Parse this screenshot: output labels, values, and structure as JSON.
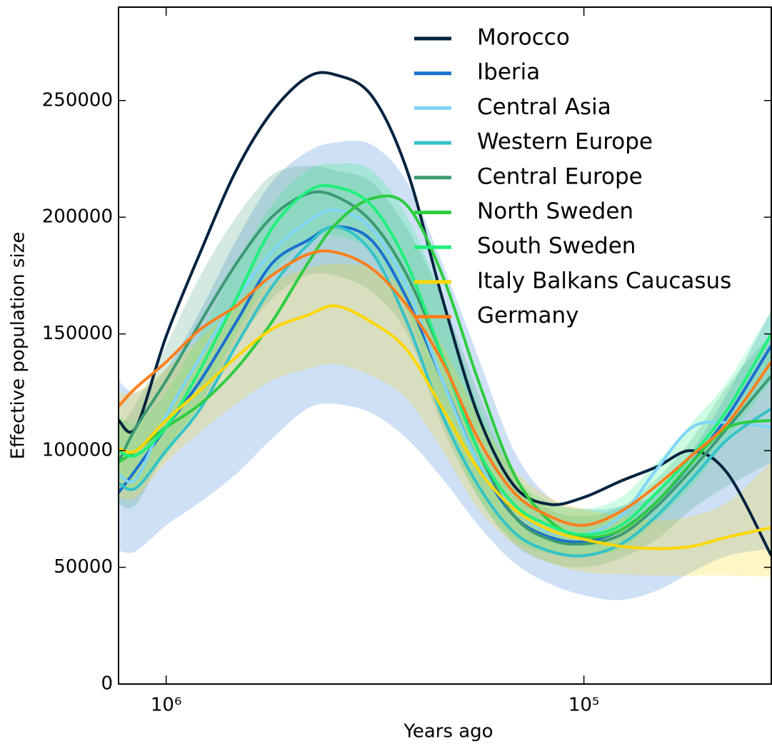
{
  "chart_data": {
    "type": "line",
    "x_label": "Years ago",
    "y_label": "Effective population size",
    "x_scale": "log",
    "legend": "upper right",
    "xlim": [
      1300000,
      35600
    ],
    "xticks": [
      {
        "value": 1000000,
        "label": "10⁶"
      },
      {
        "value": 100000,
        "label": "10⁵"
      }
    ],
    "ylim": [
      0,
      290000
    ],
    "yticks": [
      0,
      50000,
      100000,
      150000,
      200000,
      250000
    ],
    "x": [
      1300000,
      1180000,
      1000000,
      828000,
      680000,
      559000,
      459000,
      393000,
      322000,
      265000,
      218000,
      179000,
      147000,
      121000,
      100000,
      81500,
      67000,
      55100,
      45200,
      35600
    ],
    "series": [
      {
        "name": "Morocco",
        "color": "#03223f",
        "values": [
          113000,
          110000,
          149000,
          185000,
          220000,
          245000,
          260000,
          261000,
          252000,
          220000,
          165000,
          115000,
          85000,
          77000,
          80000,
          87000,
          93000,
          100000,
          90000,
          55000
        ]
      },
      {
        "name": "Iberia",
        "color": "#1a70d0",
        "values": [
          82000,
          92000,
          110000,
          130000,
          155000,
          180000,
          190000,
          196000,
          190000,
          165000,
          130000,
          95000,
          72000,
          63000,
          61000,
          66000,
          78000,
          95000,
          115000,
          145000
        ],
        "upper": [
          130000,
          125000,
          135000,
          160000,
          190000,
          215000,
          228000,
          232000,
          231000,
          215000,
          180000,
          140000,
          100000,
          80000,
          75000,
          76000,
          82000,
          100000,
          125000,
          160000
        ],
        "lower": [
          57000,
          57000,
          68000,
          78000,
          90000,
          105000,
          118000,
          120000,
          116000,
          105000,
          88000,
          68000,
          52000,
          43000,
          38000,
          36000,
          40000,
          48000,
          55000,
          58000
        ]
      },
      {
        "name": "Central Asia",
        "color": "#7fd4f8",
        "values": [
          90000,
          88000,
          115000,
          140000,
          165000,
          185000,
          198000,
          203000,
          195000,
          170000,
          130000,
          95000,
          75000,
          65000,
          64000,
          72000,
          92000,
          110000,
          112000,
          110000
        ]
      },
      {
        "name": "Western Europe",
        "color": "#33c3c8",
        "values": [
          86000,
          84000,
          100000,
          118000,
          145000,
          170000,
          188000,
          196000,
          185000,
          155000,
          115000,
          85000,
          65000,
          57000,
          55000,
          60000,
          72000,
          88000,
          105000,
          118000
        ]
      },
      {
        "name": "Central Europe",
        "color": "#3b9a72",
        "values": [
          95000,
          110000,
          130000,
          155000,
          180000,
          200000,
          210000,
          209000,
          198000,
          175000,
          140000,
          100000,
          72000,
          62000,
          60000,
          64000,
          76000,
          92000,
          110000,
          132000
        ],
        "upper": [
          110000,
          120000,
          145000,
          175000,
          200000,
          218000,
          222000,
          220000,
          215000,
          195000,
          165000,
          125000,
          90000,
          75000,
          72000,
          76000,
          88000,
          105000,
          128000,
          150000
        ],
        "lower": [
          77000,
          77000,
          100000,
          120000,
          145000,
          165000,
          175000,
          175000,
          168000,
          150000,
          110000,
          80000,
          60000,
          52000,
          50000,
          54000,
          62000,
          75000,
          85000,
          95000
        ]
      },
      {
        "name": "North Sweden",
        "color": "#2ecc40",
        "values": [
          95000,
          100000,
          110000,
          120000,
          135000,
          155000,
          180000,
          197000,
          208000,
          205000,
          175000,
          130000,
          90000,
          70000,
          63000,
          66000,
          78000,
          95000,
          110000,
          113000
        ]
      },
      {
        "name": "South Sweden",
        "color": "#1ff07a",
        "values": [
          100000,
          98000,
          110000,
          135000,
          165000,
          195000,
          211000,
          213000,
          205000,
          180000,
          140000,
          100000,
          77000,
          68000,
          64000,
          68000,
          82000,
          98000,
          118000,
          150000
        ],
        "upper": [
          115000,
          112000,
          125000,
          150000,
          180000,
          205000,
          220000,
          223000,
          220000,
          200000,
          165000,
          120000,
          90000,
          78000,
          75000,
          80000,
          95000,
          112000,
          130000,
          160000
        ],
        "lower": [
          85000,
          85000,
          98000,
          120000,
          150000,
          175000,
          190000,
          192000,
          185000,
          160000,
          115000,
          80000,
          62000,
          56000,
          55000,
          58000,
          70000,
          85000,
          105000,
          130000
        ]
      },
      {
        "name": "Italy Balkans Caucasus",
        "color": "#ffd700",
        "values": [
          101000,
          100000,
          113000,
          126000,
          140000,
          152000,
          158000,
          162000,
          155000,
          143000,
          118000,
          92000,
          75000,
          66000,
          62000,
          59000,
          58000,
          59000,
          63000,
          67000
        ],
        "upper": [
          125000,
          125000,
          135000,
          148000,
          162000,
          172000,
          178000,
          180000,
          178000,
          168000,
          145000,
          115000,
          92000,
          80000,
          75000,
          72000,
          70000,
          72000,
          78000,
          95000
        ],
        "lower": [
          80000,
          80000,
          95000,
          108000,
          120000,
          130000,
          135000,
          137000,
          132000,
          122000,
          100000,
          75000,
          60000,
          52000,
          48000,
          47000,
          46500,
          46500,
          46500,
          46000
        ]
      },
      {
        "name": "Germany",
        "color": "#ff7f1e",
        "values": [
          119000,
          127000,
          138000,
          152000,
          162000,
          175000,
          184000,
          185000,
          178000,
          162000,
          138000,
          105000,
          82000,
          72000,
          68000,
          74000,
          85000,
          98000,
          112000,
          138000
        ]
      }
    ]
  }
}
